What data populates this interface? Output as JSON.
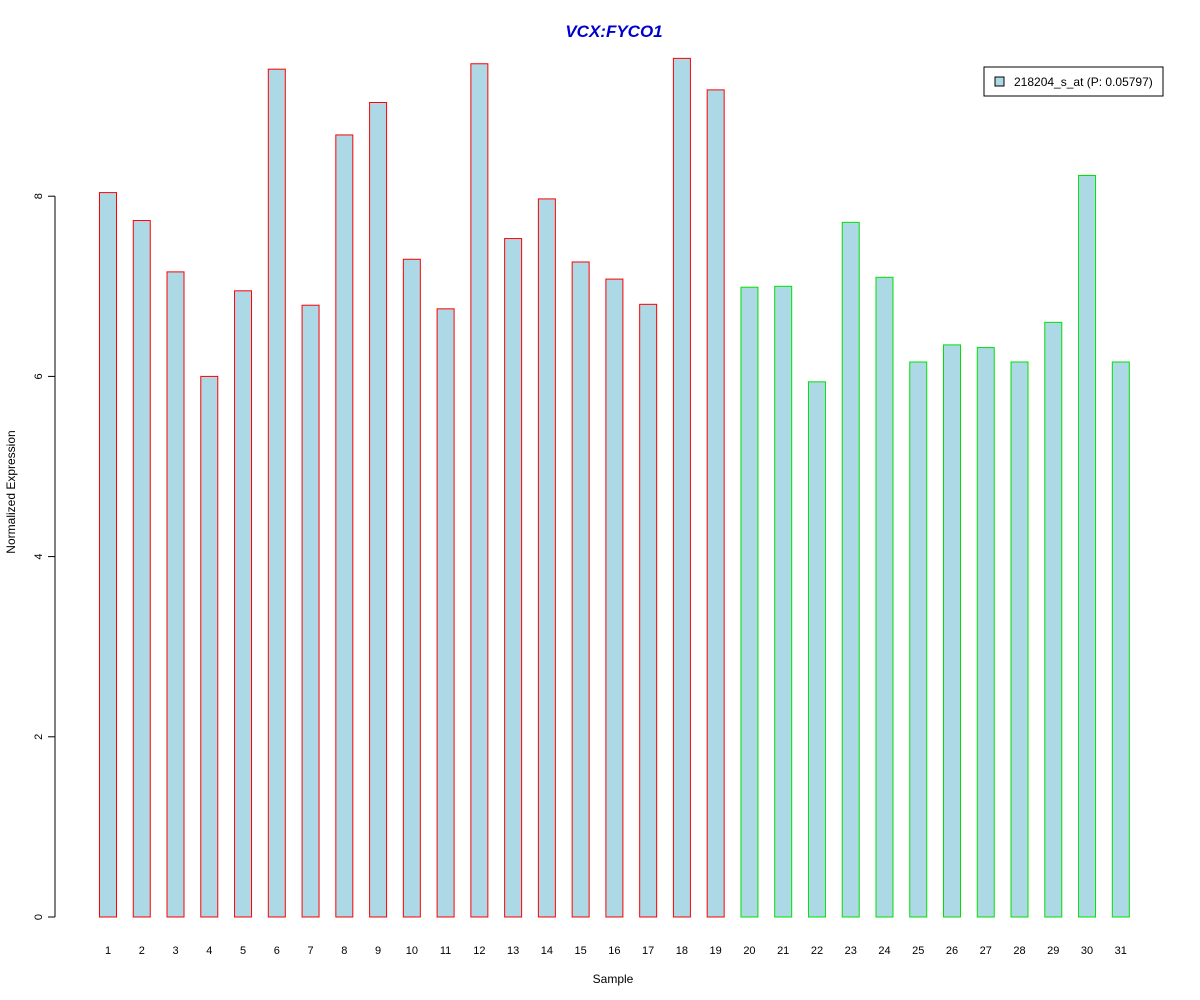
{
  "chart_data": {
    "type": "bar",
    "title": "VCX:FYCO1",
    "xlabel": "Sample",
    "ylabel": "Normalized Expression",
    "categories": [
      "1",
      "2",
      "3",
      "4",
      "5",
      "6",
      "7",
      "8",
      "9",
      "10",
      "11",
      "12",
      "13",
      "14",
      "15",
      "16",
      "17",
      "18",
      "19",
      "20",
      "21",
      "22",
      "23",
      "24",
      "25",
      "26",
      "27",
      "28",
      "29",
      "30",
      "31"
    ],
    "series": [
      {
        "name": "218204_s_at (P: 0.05797)",
        "values": [
          8.04,
          7.73,
          7.16,
          6.0,
          6.95,
          9.41,
          6.79,
          8.68,
          9.04,
          7.3,
          6.75,
          9.47,
          7.53,
          7.97,
          7.27,
          7.08,
          6.8,
          9.53,
          9.18,
          6.99,
          7.0,
          5.94,
          7.71,
          7.1,
          6.16,
          6.35,
          6.32,
          6.16,
          6.6,
          8.23,
          6.16
        ]
      }
    ],
    "groups": [
      {
        "samples": [
          1,
          19
        ],
        "border_color": "#ff0000"
      },
      {
        "samples": [
          20,
          31
        ],
        "border_color": "#00e000"
      }
    ],
    "ylim": [
      0,
      9.6
    ],
    "yticks": [
      0,
      2,
      4,
      6,
      8
    ],
    "legend_position": "top-right",
    "grid": false,
    "colors": {
      "bar_fill": "#add8e6",
      "title": "#0000cc"
    }
  }
}
